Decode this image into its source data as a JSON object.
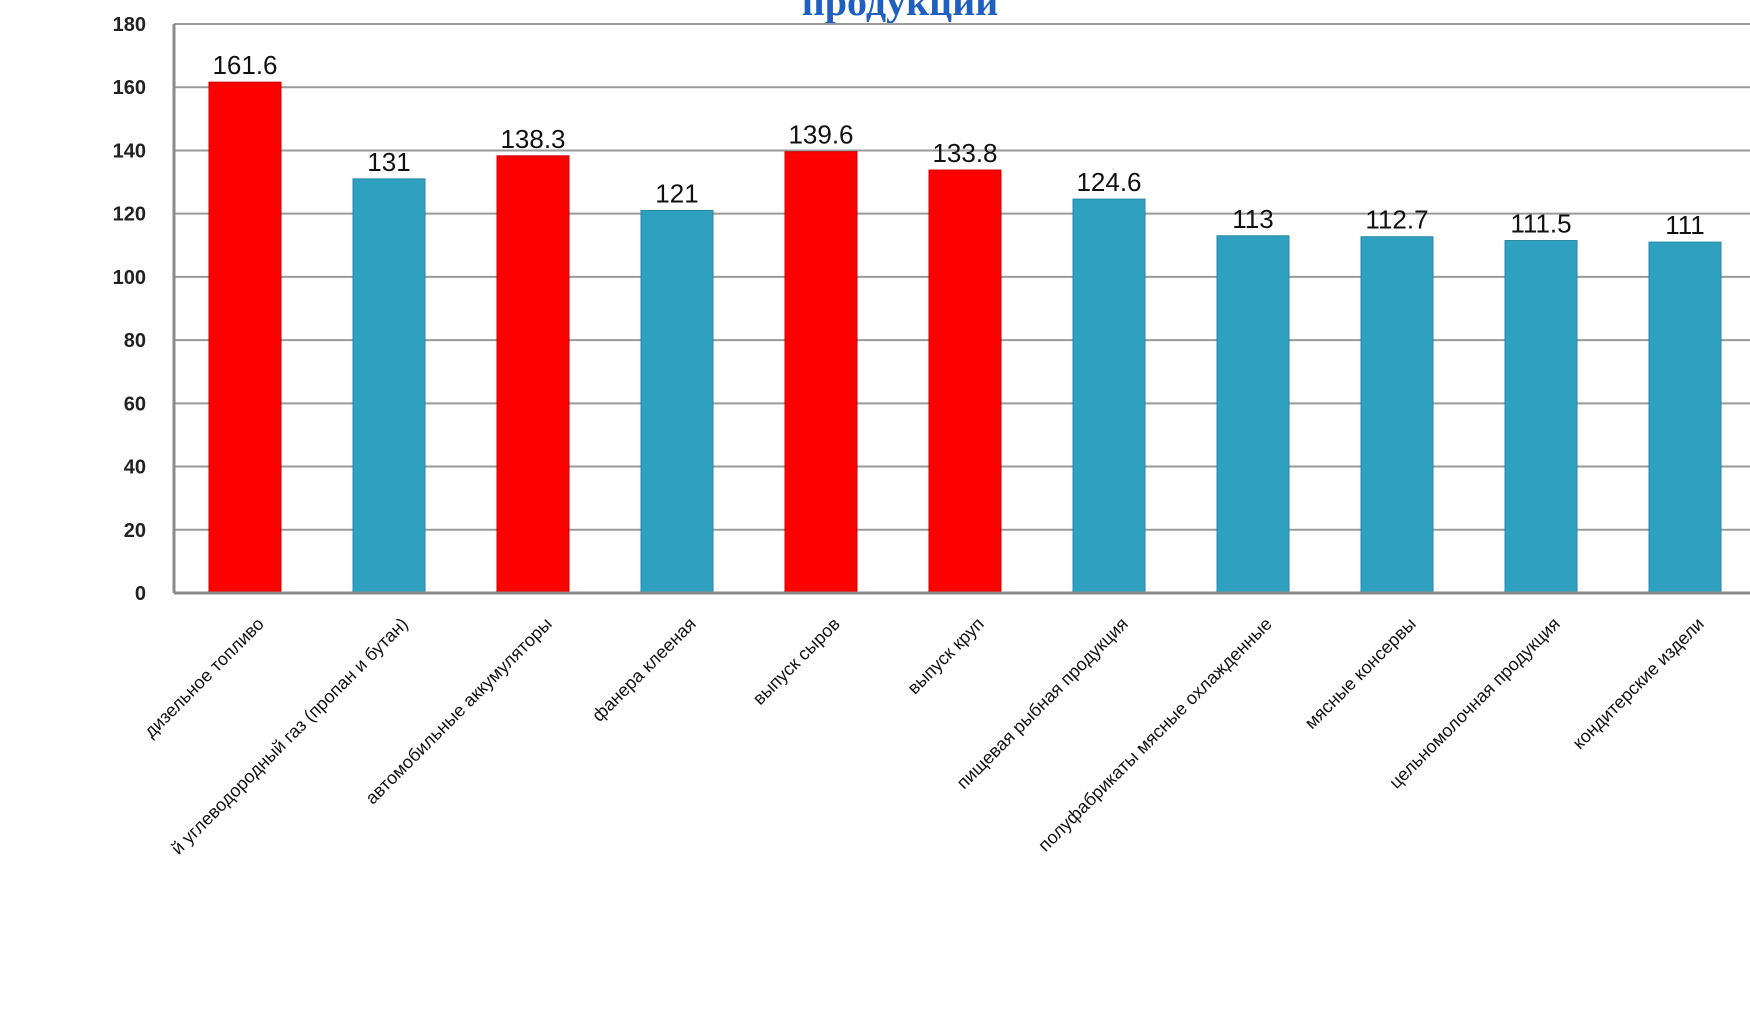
{
  "chart_data": {
    "type": "bar",
    "title": "продукции",
    "xlabel": "",
    "ylabel": "",
    "ylim": [
      0,
      180
    ],
    "yticks": [
      0,
      20,
      40,
      60,
      80,
      100,
      120,
      140,
      160,
      180
    ],
    "grid": true,
    "categories": [
      "й углеводородный газ (пропан и бутан)",
      "дизельное топливо",
      "автомобильные аккумуляторы",
      "фанера клееная",
      "выпуск сыров",
      "выпуск круп",
      "пищевая рыбная продукция",
      "полуфабрикаты мясные охлажденные",
      "мясные консервы",
      "цельномолочная продукция",
      "кондитерские издели"
    ],
    "values": [
      131,
      161.6,
      138.3,
      121,
      139.6,
      133.8,
      124.6,
      113,
      112.7,
      111.5,
      111
    ],
    "value_labels": [
      "131",
      "161.6",
      "138.3",
      "121",
      "139.6",
      "133.8",
      "124.6",
      "113",
      "112.7",
      "111.5",
      "111"
    ],
    "highlight": [
      false,
      true,
      true,
      false,
      true,
      true,
      false,
      false,
      false,
      false,
      false
    ],
    "colors": {
      "highlight": "#ff0000",
      "normal": "#2fa0c0",
      "grid": "#9a9a9a",
      "axis": "#8a8a8a"
    }
  }
}
